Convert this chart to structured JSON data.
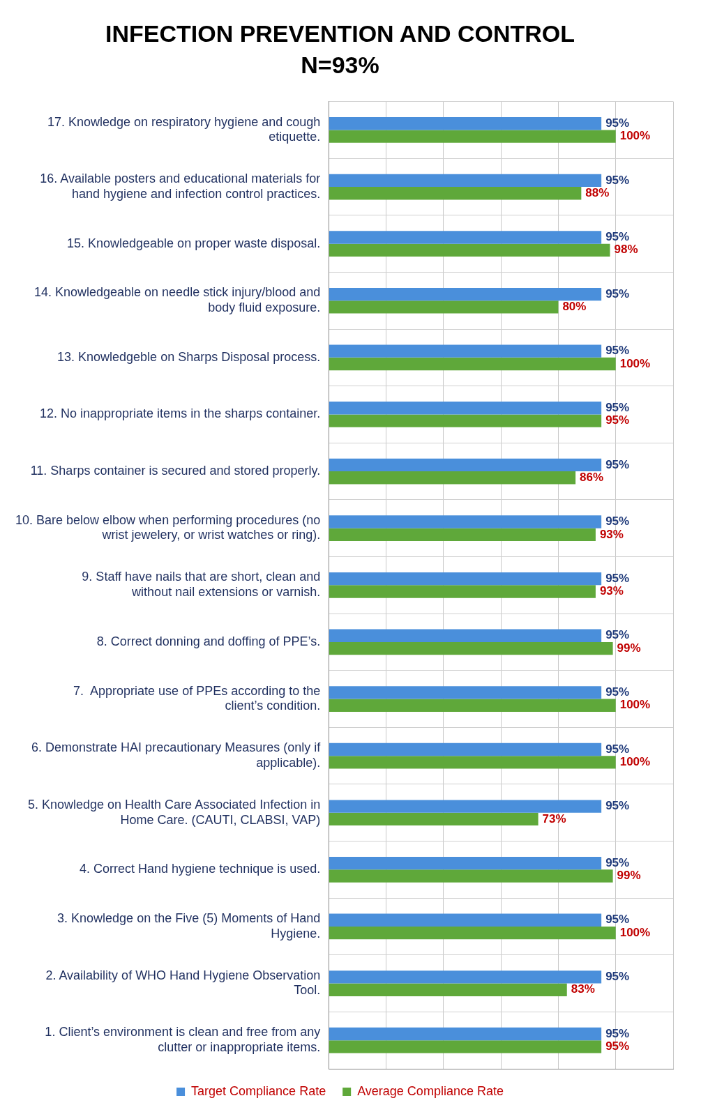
{
  "chart_data": {
    "type": "bar",
    "orientation": "horizontal",
    "title": "INFECTION PREVENTION AND CONTROL",
    "subtitle": "N=93%",
    "categories": [
      "17. Knowledge on respiratory hygiene and cough etiquette.",
      "16. Available posters and educational materials for hand hygiene and infection control practices.",
      "15. Knowledgeable on proper waste disposal.",
      "14. Knowledgeable on needle stick injury/blood and body fluid exposure.",
      "13. Knowledgeble on Sharps Disposal process.",
      "12. No inappropriate items in the sharps container.",
      "11. Sharps container is secured and stored properly.",
      "10. Bare below elbow when performing procedures (no wrist jewelery, or wrist watches or ring).",
      "9. Staff have nails that are short, clean and without nail extensions or varnish.",
      "8. Correct donning and doffing of PPE’s.",
      "7.  Appropriate use of PPEs according to the client’s condition.",
      "6. Demonstrate HAI precautionary Measures (only if applicable).",
      "5. Knowledge on Health Care Associated Infection in Home Care. (CAUTI, CLABSI, VAP)",
      "4. Correct Hand hygiene technique is used.",
      "3. Knowledge on the Five (5) Moments of Hand Hygiene.",
      "2. Availability of WHO Hand Hygiene Observation Tool.",
      "1. Client’s environment is clean and free from any clutter or inappropriate items."
    ],
    "series": [
      {
        "name": "Target Compliance Rate",
        "color": "#4a8fdb",
        "values": [
          95,
          95,
          95,
          95,
          95,
          95,
          95,
          95,
          95,
          95,
          95,
          95,
          95,
          95,
          95,
          95,
          95
        ],
        "value_labels": [
          "95%",
          "95%",
          "95%",
          "95%",
          "95%",
          "95%",
          "95%",
          "95%",
          "95%",
          "95%",
          "95%",
          "95%",
          "95%",
          "95%",
          "95%",
          "95%",
          "95%"
        ]
      },
      {
        "name": "Average Compliance Rate",
        "color": "#5fa83a",
        "values": [
          100,
          88,
          98,
          80,
          100,
          95,
          86,
          93,
          93,
          99,
          100,
          100,
          73,
          99,
          100,
          83,
          95
        ],
        "value_labels": [
          "100%",
          "88%",
          "98%",
          "80%",
          "100%",
          "95%",
          "86%",
          "93%",
          "93%",
          "99%",
          "100%",
          "100%",
          "73%",
          "99%",
          "100%",
          "83%",
          "95%"
        ]
      }
    ],
    "tick_labels": "y",
    "grid": "x",
    "legend": "bottom"
  }
}
